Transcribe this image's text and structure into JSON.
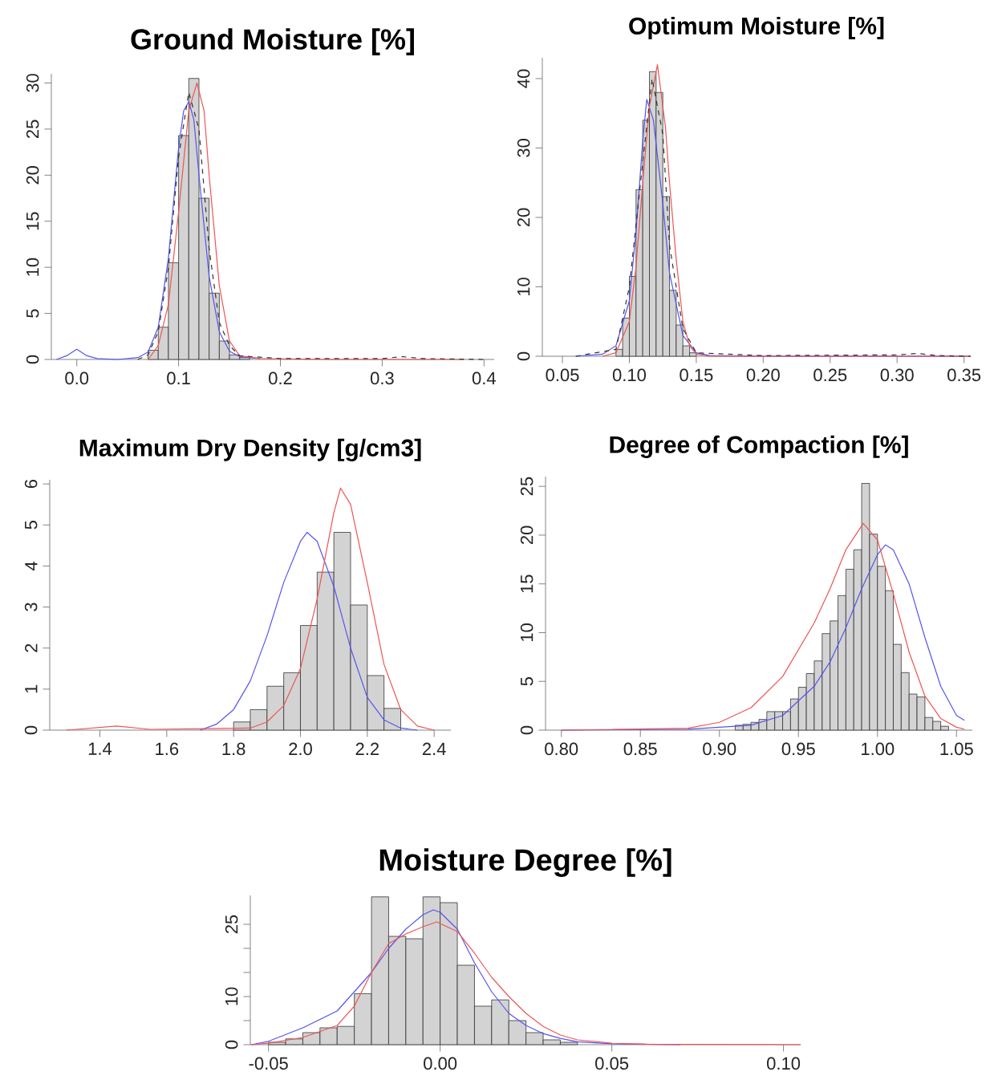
{
  "chart_data": [
    {
      "type": "histogram",
      "title": "Ground Moisture [%]",
      "color": "#d3d3d3",
      "bins": [
        0.07,
        0.08,
        0.09,
        0.1,
        0.11,
        0.12,
        0.13,
        0.14,
        0.15,
        0.16,
        0.17
      ],
      "values": [
        1,
        3.5,
        10.5,
        24.3,
        30.5,
        17.5,
        7.2,
        2,
        0.5,
        0.2
      ],
      "series": [
        {
          "type": "line",
          "color": "#5555ee",
          "x": [
            -0.02,
            -0.01,
            0.0,
            0.01,
            0.02,
            0.04,
            0.06,
            0.07,
            0.08,
            0.09,
            0.1,
            0.105,
            0.11,
            0.115,
            0.12,
            0.13,
            0.14,
            0.15,
            0.16,
            0.18
          ],
          "values": [
            0,
            0.4,
            1.1,
            0.4,
            0.1,
            0,
            0.2,
            0.8,
            3.5,
            11,
            23,
            27,
            28,
            26,
            20,
            9,
            3,
            0.9,
            0.3,
            0.1
          ]
        },
        {
          "type": "line",
          "color": "#ee5555",
          "x": [
            0.07,
            0.08,
            0.09,
            0.1,
            0.11,
            0.118,
            0.125,
            0.13,
            0.14,
            0.15,
            0.16,
            0.18,
            0.25,
            0.38
          ],
          "values": [
            0,
            1.5,
            6,
            16,
            27,
            30,
            27,
            20,
            8,
            2,
            0.4,
            0.1,
            0,
            0
          ]
        },
        {
          "type": "line",
          "color": "#333333",
          "line_style": "dashed",
          "x": [
            0.06,
            0.07,
            0.08,
            0.09,
            0.1,
            0.11,
            0.12,
            0.13,
            0.14,
            0.15,
            0.16,
            0.2,
            0.25,
            0.3,
            0.32,
            0.34,
            0.4
          ],
          "values": [
            0,
            0.5,
            3,
            10,
            22,
            29,
            25,
            12,
            4,
            1.5,
            0.4,
            0.1,
            0.1,
            0.1,
            0.3,
            0.1,
            0
          ]
        }
      ],
      "xlim": [
        -0.025,
        0.41
      ],
      "ylim": [
        0,
        31
      ],
      "xticks": [
        {
          "value": 0,
          "label": "0.0"
        },
        0.1,
        0.2,
        0.3,
        0.4
      ],
      "yticks": [
        0,
        5,
        10,
        15,
        20,
        25,
        30
      ]
    },
    {
      "type": "histogram",
      "title": "Optimum Moisture [%]",
      "color": "#d3d3d3",
      "bins": [
        0.09,
        0.095,
        0.1,
        0.105,
        0.11,
        0.115,
        0.12,
        0.125,
        0.13,
        0.135,
        0.14,
        0.145,
        0.15
      ],
      "values": [
        1,
        5.5,
        11.5,
        24,
        34,
        41,
        38,
        23,
        9.5,
        4.5,
        1.5,
        0.5
      ],
      "series": [
        {
          "type": "line",
          "color": "#5555ee",
          "x": [
            0.06,
            0.08,
            0.09,
            0.1,
            0.105,
            0.11,
            0.113,
            0.118,
            0.125,
            0.13,
            0.14,
            0.15,
            0.16,
            0.2,
            0.355
          ],
          "values": [
            0,
            0.3,
            1.5,
            8,
            18,
            31,
            37,
            34,
            22,
            12,
            3,
            0.5,
            0.1,
            0,
            0
          ]
        },
        {
          "type": "line",
          "color": "#ee5555",
          "x": [
            0.08,
            0.09,
            0.1,
            0.105,
            0.11,
            0.115,
            0.121,
            0.127,
            0.13,
            0.135,
            0.14,
            0.145,
            0.15,
            0.16,
            0.355
          ],
          "values": [
            0,
            0.5,
            5,
            13,
            25,
            36,
            42,
            33,
            25,
            14,
            5,
            1.5,
            0.3,
            0,
            0
          ]
        },
        {
          "type": "line",
          "color": "#333333",
          "line_style": "dashed",
          "x": [
            0.06,
            0.09,
            0.1,
            0.11,
            0.117,
            0.125,
            0.13,
            0.14,
            0.15,
            0.2,
            0.3,
            0.315,
            0.33,
            0.355
          ],
          "values": [
            0,
            1,
            10,
            28,
            40,
            32,
            16,
            4,
            0.5,
            0.1,
            0.2,
            0.4,
            0.1,
            0
          ]
        }
      ],
      "xlim": [
        0.035,
        0.355
      ],
      "ylim": [
        0,
        43
      ],
      "xticks": [
        0.05,
        {
          "value": 0.1,
          "label": "0.10"
        },
        0.15,
        {
          "value": 0.2,
          "label": "0.20"
        },
        0.25,
        {
          "value": 0.3,
          "label": "0.30"
        },
        0.35
      ],
      "yticks": [
        0,
        10,
        20,
        30,
        40
      ]
    },
    {
      "type": "histogram",
      "title": "Maximum Dry Density [g/cm3]",
      "color": "#d3d3d3",
      "bins": [
        1.8,
        1.85,
        1.9,
        1.95,
        2.0,
        2.05,
        2.1,
        2.15,
        2.2,
        2.25,
        2.3
      ],
      "values": [
        0.2,
        0.5,
        1.07,
        1.4,
        2.55,
        3.85,
        4.82,
        3.05,
        1.33,
        0.53
      ],
      "series": [
        {
          "type": "line",
          "color": "#5555ee",
          "x": [
            1.7,
            1.75,
            1.8,
            1.85,
            1.9,
            1.95,
            2.0,
            2.02,
            2.05,
            2.1,
            2.15,
            2.2,
            2.25,
            2.3,
            2.35
          ],
          "values": [
            0,
            0.15,
            0.5,
            1.2,
            2.3,
            3.6,
            4.6,
            4.82,
            4.6,
            3.5,
            2.0,
            0.8,
            0.25,
            0.05,
            0
          ]
        },
        {
          "type": "line",
          "color": "#ee5555",
          "x": [
            1.3,
            1.45,
            1.55,
            1.85,
            1.9,
            1.95,
            2.0,
            2.05,
            2.1,
            2.12,
            2.15,
            2.2,
            2.25,
            2.3,
            2.35,
            2.4
          ],
          "values": [
            0,
            0.1,
            0.02,
            0.05,
            0.2,
            0.6,
            1.5,
            3.2,
            5.3,
            5.9,
            5.5,
            3.6,
            1.6,
            0.5,
            0.1,
            0
          ]
        }
      ],
      "xlim": [
        1.25,
        2.45
      ],
      "ylim": [
        0,
        6.1
      ],
      "xticks": [
        1.4,
        1.6,
        1.8,
        {
          "value": 2,
          "label": "2.0"
        },
        2.2,
        2.4
      ],
      "yticks": [
        0,
        1,
        2,
        3,
        4,
        5,
        6
      ]
    },
    {
      "type": "histogram",
      "title": "Degree of Compaction [%]",
      "color": "#d3d3d3",
      "bins": [
        0.91,
        0.915,
        0.92,
        0.925,
        0.93,
        0.935,
        0.94,
        0.945,
        0.95,
        0.955,
        0.96,
        0.965,
        0.97,
        0.975,
        0.98,
        0.985,
        0.99,
        0.995,
        1.0,
        1.005,
        1.01,
        1.015,
        1.02,
        1.025,
        1.03,
        1.035,
        1.04,
        1.045
      ],
      "values": [
        0.5,
        0.6,
        0.8,
        1.1,
        1.9,
        1.9,
        1.9,
        3.2,
        4.4,
        5.8,
        7.1,
        9.9,
        11.2,
        13.8,
        16.5,
        18.5,
        25.3,
        20.1,
        16.8,
        14.3,
        8.8,
        5.9,
        3.7,
        3.4,
        1.3,
        0.9,
        0.4
      ],
      "series": [
        {
          "type": "line",
          "color": "#5555ee",
          "x": [
            0.8,
            0.88,
            0.9,
            0.92,
            0.94,
            0.96,
            0.97,
            0.98,
            0.99,
            1.0,
            1.005,
            1.01,
            1.02,
            1.03,
            1.04,
            1.05,
            1.055
          ],
          "values": [
            0,
            0.1,
            0.3,
            0.5,
            1.5,
            4.5,
            7,
            10.5,
            14.5,
            18,
            19,
            18.5,
            15,
            9.5,
            4.5,
            1.5,
            1
          ]
        },
        {
          "type": "line",
          "color": "#ee5555",
          "x": [
            0.8,
            0.88,
            0.9,
            0.92,
            0.94,
            0.96,
            0.97,
            0.98,
            0.991,
            1.0,
            1.01,
            1.02,
            1.03,
            1.04,
            1.05,
            1.055
          ],
          "values": [
            0,
            0.2,
            0.8,
            2.3,
            5.5,
            11,
            14.5,
            18.5,
            21.2,
            19.5,
            14,
            8,
            3.5,
            1.2,
            0.3,
            0.1
          ]
        }
      ],
      "xlim": [
        0.79,
        1.06
      ],
      "ylim": [
        0,
        26
      ],
      "xticks": [
        {
          "value": 0.8,
          "label": "0.80"
        },
        0.85,
        {
          "value": 0.9,
          "label": "0.90"
        },
        0.95,
        {
          "value": 1.0,
          "label": "1.00"
        },
        1.05
      ],
      "yticks": [
        0,
        5,
        10,
        15,
        20,
        25
      ]
    },
    {
      "type": "histogram",
      "title": "Moisture Degree [%]",
      "color": "#d3d3d3",
      "bins": [
        -0.05,
        -0.045,
        -0.04,
        -0.035,
        -0.03,
        -0.025,
        -0.02,
        -0.015,
        -0.01,
        -0.005,
        0.0,
        0.005,
        0.01,
        0.015,
        0.02,
        0.025,
        0.03,
        0.035,
        0.04
      ],
      "values": [
        0.5,
        1.2,
        2.5,
        3.5,
        3.8,
        10.6,
        30.7,
        22.5,
        22,
        30.7,
        29.5,
        16.5,
        8,
        9.3,
        5,
        2.5,
        1,
        0.5
      ],
      "series": [
        {
          "type": "line",
          "color": "#5555ee",
          "x": [
            -0.055,
            -0.05,
            -0.04,
            -0.03,
            -0.02,
            -0.015,
            -0.01,
            -0.005,
            -0.002,
            0.0,
            0.005,
            0.01,
            0.015,
            0.02,
            0.025,
            0.03,
            0.035,
            0.04,
            0.05,
            0.06,
            0.07
          ],
          "values": [
            0,
            0.7,
            3.5,
            7,
            15,
            20,
            24,
            27,
            28,
            27.5,
            24,
            17,
            11,
            6.5,
            4,
            2.3,
            1.3,
            0.6,
            0.2,
            null,
            0
          ]
        },
        {
          "type": "line",
          "color": "#ee5555",
          "x": [
            -0.055,
            -0.05,
            -0.04,
            -0.03,
            -0.025,
            -0.02,
            -0.015,
            -0.01,
            -0.005,
            -0.001,
            0.005,
            0.01,
            0.015,
            0.02,
            0.025,
            0.03,
            0.035,
            0.04,
            0.05,
            0.06,
            0.105
          ],
          "values": [
            0,
            0.3,
            1.5,
            4,
            8,
            15,
            21,
            23,
            24.5,
            25.5,
            23.5,
            19,
            14,
            10,
            6.5,
            3.8,
            2,
            1,
            0.3,
            0.1,
            0
          ]
        }
      ],
      "xlim": [
        -0.0553,
        0.105
      ],
      "ylim": [
        0,
        31
      ],
      "xticks": [
        -0.05,
        {
          "value": 0,
          "label": "0.00"
        },
        0.05,
        {
          "value": 0.1,
          "label": "0.10"
        }
      ],
      "yticks": [
        0,
        {
          "value": 5,
          "label": null
        },
        10,
        {
          "value": 15,
          "label": null
        },
        {
          "value": 20,
          "label": null
        },
        25
      ]
    }
  ]
}
